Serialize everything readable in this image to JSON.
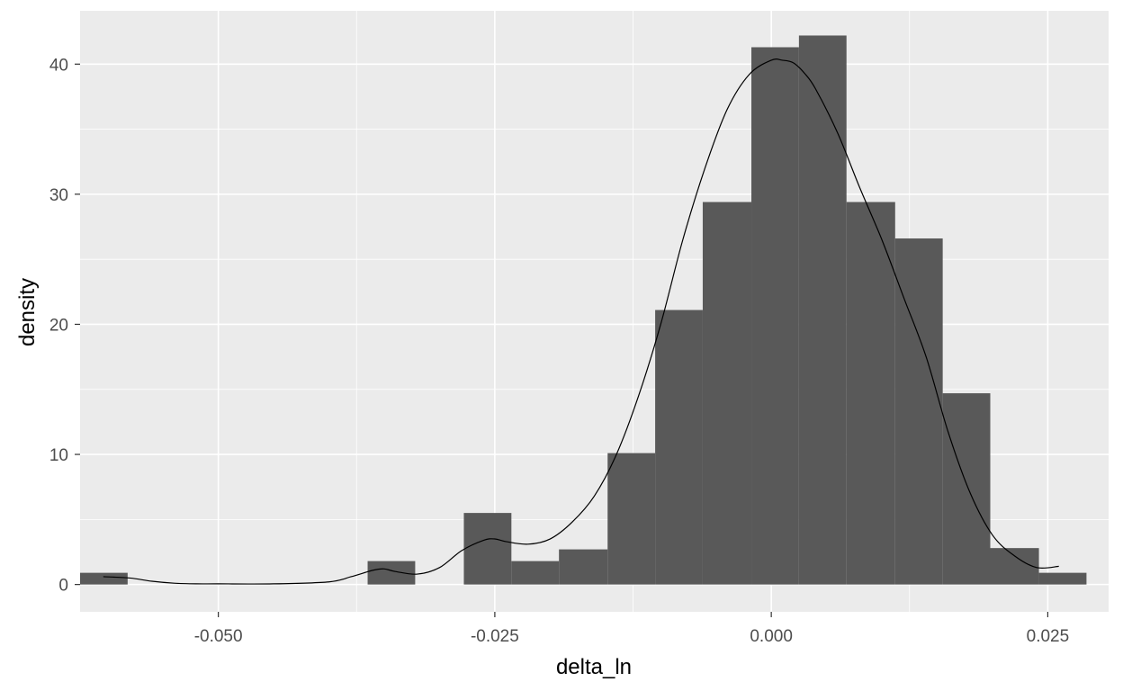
{
  "chart_data": {
    "type": "histogram",
    "title": "",
    "xlabel": "delta_ln",
    "ylabel": "density",
    "xlim": [
      -0.0625,
      0.0305
    ],
    "ylim": [
      -2.1,
      44.1
    ],
    "x_ticks": [
      -0.05,
      -0.025,
      0.0,
      0.025
    ],
    "x_tick_labels": [
      "-0.050",
      "-0.025",
      "0.000",
      "0.025"
    ],
    "y_ticks": [
      0,
      10,
      20,
      30,
      40
    ],
    "y_tick_labels": [
      "0",
      "10",
      "20",
      "30",
      "40"
    ],
    "grid": true,
    "bins": {
      "x_start": [
        -0.0625,
        -0.0365,
        -0.0278,
        -0.0235,
        -0.0192,
        -0.0148,
        -0.0105,
        -0.0062,
        -0.0018,
        0.0025,
        0.0068,
        0.0112,
        0.0155,
        0.0198,
        0.0242
      ],
      "x_end": [
        -0.0582,
        -0.0322,
        -0.0235,
        -0.0192,
        -0.0148,
        -0.0105,
        -0.0062,
        -0.0018,
        0.0025,
        0.0068,
        0.0112,
        0.0155,
        0.0198,
        0.0242,
        0.0285
      ],
      "density": [
        0.9,
        1.8,
        5.5,
        1.8,
        2.7,
        10.1,
        21.1,
        29.4,
        41.3,
        42.2,
        29.4,
        26.6,
        14.7,
        2.8,
        0.9
      ]
    },
    "density_curve": {
      "x": [
        -0.0604,
        -0.058,
        -0.056,
        -0.054,
        -0.052,
        -0.05,
        -0.045,
        -0.04,
        -0.038,
        -0.036,
        -0.035,
        -0.034,
        -0.032,
        -0.03,
        -0.028,
        -0.026,
        -0.025,
        -0.024,
        -0.022,
        -0.02,
        -0.018,
        -0.016,
        -0.014,
        -0.012,
        -0.01,
        -0.008,
        -0.006,
        -0.004,
        -0.002,
        0.0,
        0.001,
        0.002,
        0.003,
        0.004,
        0.006,
        0.008,
        0.01,
        0.012,
        0.014,
        0.016,
        0.018,
        0.02,
        0.022,
        0.024,
        0.026
      ],
      "y": [
        0.6,
        0.5,
        0.25,
        0.1,
        0.05,
        0.05,
        0.05,
        0.2,
        0.6,
        1.1,
        1.2,
        1.0,
        0.8,
        1.3,
        2.6,
        3.4,
        3.5,
        3.3,
        3.1,
        3.5,
        4.8,
        6.8,
        10.0,
        14.5,
        20.0,
        26.5,
        32.0,
        36.5,
        39.2,
        40.3,
        40.3,
        40.1,
        39.3,
        38.1,
        34.7,
        30.5,
        26.5,
        22.0,
        17.5,
        11.7,
        7.0,
        3.8,
        2.2,
        1.3,
        1.4
      ]
    },
    "bar_color": "#595959",
    "panel_background": "#ebebeb",
    "grid_color": "#ffffff",
    "line_color": "#000000"
  }
}
